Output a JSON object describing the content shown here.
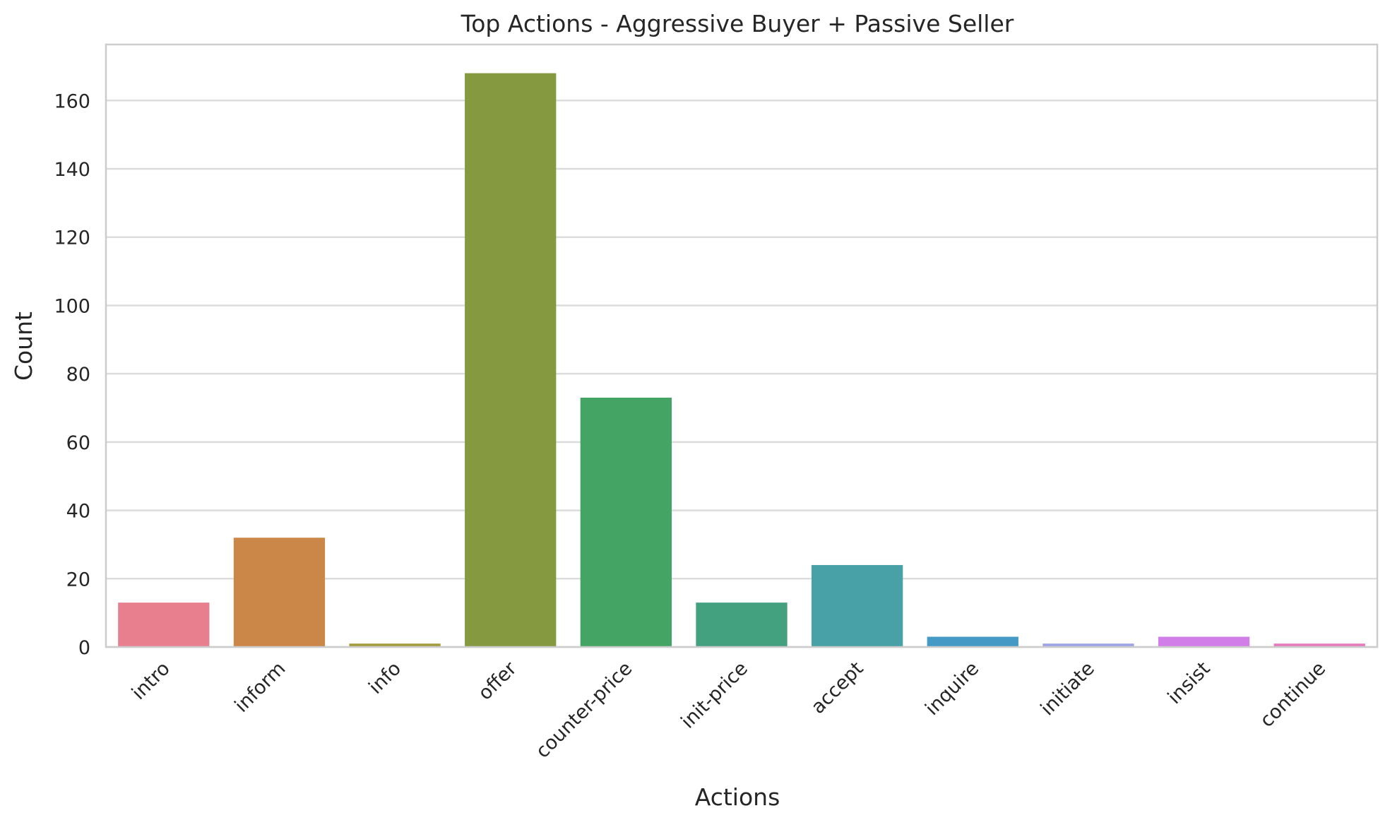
{
  "chart_data": {
    "type": "bar",
    "title": "Top Actions - Aggressive Buyer + Passive Seller",
    "xlabel": "Actions",
    "ylabel": "Count",
    "categories": [
      "intro",
      "inform",
      "info",
      "offer",
      "counter-price",
      "init-price",
      "accept",
      "inquire",
      "initiate",
      "insist",
      "continue"
    ],
    "values": [
      13,
      32,
      1,
      168,
      73,
      13,
      24,
      3,
      1,
      3,
      1
    ],
    "colors": [
      "#e87f8e",
      "#cb8747",
      "#a59c3f",
      "#849940",
      "#43a463",
      "#44a17f",
      "#47a1a7",
      "#4499c5",
      "#9ea3e7",
      "#d27ee8",
      "#e47bbc"
    ],
    "yticks": [
      0,
      20,
      40,
      60,
      80,
      100,
      120,
      140,
      160
    ],
    "ylim": [
      0,
      176.4
    ],
    "grid": true,
    "legend": "none"
  }
}
